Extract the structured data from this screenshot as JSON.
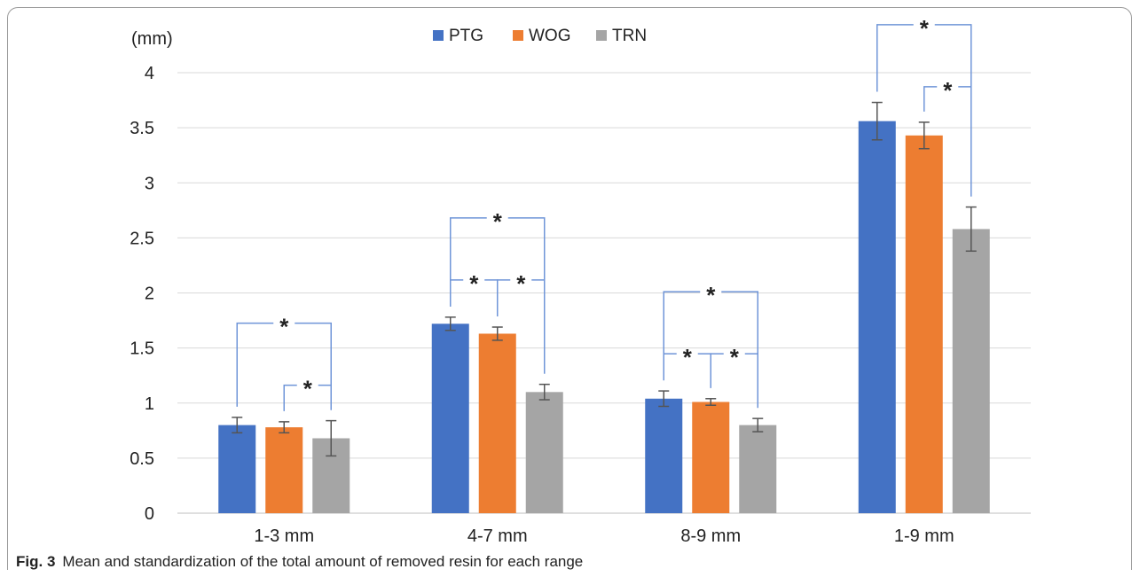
{
  "chart_data": {
    "type": "bar",
    "unit_label": "(mm)",
    "categories": [
      "1-3 mm",
      "4-7 mm",
      "8-9 mm",
      "1-9 mm"
    ],
    "series": [
      {
        "name": "PTG",
        "color": "#4472C4",
        "values": [
          0.8,
          1.72,
          1.04,
          3.56
        ],
        "errors": [
          0.07,
          0.06,
          0.07,
          0.17
        ]
      },
      {
        "name": "WOG",
        "color": "#ED7D31",
        "values": [
          0.78,
          1.63,
          1.01,
          3.43
        ],
        "errors": [
          0.05,
          0.06,
          0.03,
          0.12
        ]
      },
      {
        "name": "TRN",
        "color": "#A5A5A5",
        "values": [
          0.68,
          1.1,
          0.8,
          2.58
        ],
        "errors": [
          0.16,
          0.07,
          0.06,
          0.2
        ]
      }
    ],
    "ylim": [
      0,
      4
    ],
    "yticks": [
      "0",
      "0.5",
      "1",
      "1.5",
      "2",
      "2.5",
      "3",
      "3.5",
      "4"
    ],
    "grid": true,
    "legend_position": "top-center",
    "significance": [
      {
        "category": "1-3 mm",
        "pairs": [
          [
            "PTG",
            "TRN"
          ],
          [
            "WOG",
            "TRN"
          ]
        ],
        "marker": "*"
      },
      {
        "category": "4-7 mm",
        "pairs": [
          [
            "PTG",
            "TRN"
          ],
          [
            "PTG",
            "WOG"
          ],
          [
            "WOG",
            "TRN"
          ]
        ],
        "marker": "*"
      },
      {
        "category": "8-9 mm",
        "pairs": [
          [
            "PTG",
            "TRN"
          ],
          [
            "PTG",
            "WOG"
          ],
          [
            "WOG",
            "TRN"
          ]
        ],
        "marker": "*"
      },
      {
        "category": "1-9 mm",
        "pairs": [
          [
            "PTG",
            "TRN"
          ],
          [
            "WOG",
            "TRN"
          ]
        ],
        "marker": "*"
      }
    ]
  },
  "caption": {
    "label": "Fig. 3",
    "text": "Mean and standardization of the total amount of removed resin for each range"
  }
}
